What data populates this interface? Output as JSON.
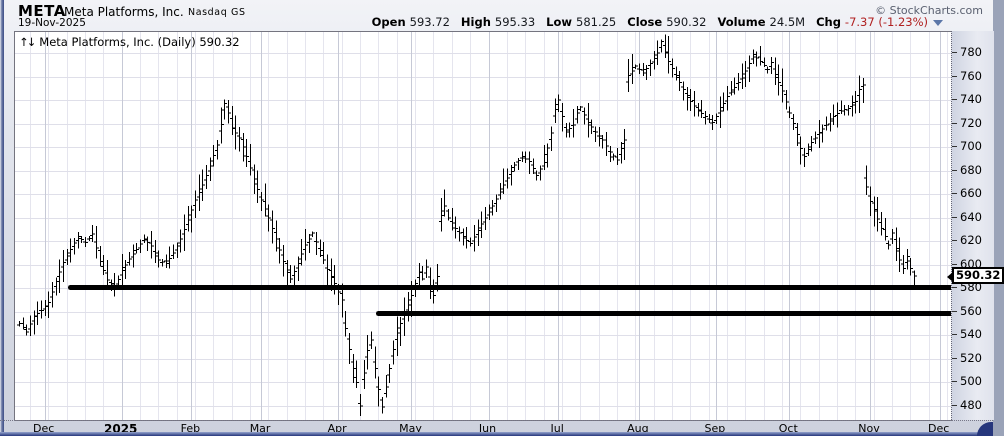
{
  "header": {
    "symbol": "META",
    "company": "Meta Platforms, Inc.",
    "exchange": "Nasdaq GS",
    "date": "19-Nov-2025",
    "copyright": "© StockCharts.com",
    "quote": {
      "items": [
        {
          "label": "Open",
          "value": "593.72",
          "down": false
        },
        {
          "label": "High",
          "value": "595.33",
          "down": false
        },
        {
          "label": "Low",
          "value": "581.25",
          "down": false
        },
        {
          "label": "Close",
          "value": "590.32",
          "down": false
        },
        {
          "label": "Volume",
          "value": "24.5M",
          "down": false
        },
        {
          "label": "Chg",
          "value": "-7.37 (-1.23%)",
          "down": true
        }
      ],
      "dropdown_icon": "chg-dropdown-arrow"
    }
  },
  "chart": {
    "arrows": "↑↓",
    "title": "Meta Platforms, Inc. (Daily) 590.32",
    "last_price_tag": "590.32",
    "colors": {
      "bar": "#000000",
      "grid_h": "#dfdfe9",
      "grid_week": "#e5e5ee",
      "grid_month": "#c6c9d6",
      "support": "#000000",
      "down_text": "#b02020",
      "plot_bg": "#ffffff"
    }
  },
  "chart_data": {
    "type": "bar",
    "subtype": "ohlc-daily",
    "title": "Meta Platforms, Inc. (Daily)",
    "ylim": [
      468,
      798
    ],
    "y_ticks": [
      480,
      500,
      520,
      540,
      560,
      580,
      600,
      620,
      640,
      660,
      680,
      700,
      720,
      740,
      760,
      780
    ],
    "grid": true,
    "days_total": 245,
    "x_months": [
      {
        "label": "Dec",
        "day": 7,
        "bold": false
      },
      {
        "label": "2025",
        "day": 28,
        "bold": true
      },
      {
        "label": "Feb",
        "day": 47,
        "bold": false
      },
      {
        "label": "Mar",
        "day": 66,
        "bold": false
      },
      {
        "label": "Apr",
        "day": 87,
        "bold": false
      },
      {
        "label": "May",
        "day": 107,
        "bold": false
      },
      {
        "label": "Jun",
        "day": 128,
        "bold": false
      },
      {
        "label": "Jul",
        "day": 147,
        "bold": false
      },
      {
        "label": "Aug",
        "day": 169,
        "bold": false
      },
      {
        "label": "Sep",
        "day": 190,
        "bold": false
      },
      {
        "label": "Oct",
        "day": 210,
        "bold": false
      },
      {
        "label": "Nov",
        "day": 232,
        "bold": false
      },
      {
        "label": "Dec",
        "day": 251,
        "bold": false
      }
    ],
    "last_ohlc": {
      "open": 593.72,
      "high": 595.33,
      "low": 581.25,
      "close": 590.32
    },
    "close_path_anchors": [
      [
        0,
        550
      ],
      [
        2,
        543
      ],
      [
        4,
        556
      ],
      [
        6,
        561
      ],
      [
        8,
        568
      ],
      [
        10,
        586
      ],
      [
        12,
        602
      ],
      [
        14,
        613
      ],
      [
        16,
        624
      ],
      [
        18,
        619
      ],
      [
        20,
        626
      ],
      [
        22,
        603
      ],
      [
        24,
        587
      ],
      [
        26,
        580
      ],
      [
        28,
        595
      ],
      [
        30,
        605
      ],
      [
        32,
        613
      ],
      [
        34,
        622
      ],
      [
        36,
        616
      ],
      [
        38,
        604
      ],
      [
        40,
        601
      ],
      [
        42,
        610
      ],
      [
        44,
        622
      ],
      [
        46,
        638
      ],
      [
        48,
        655
      ],
      [
        50,
        668
      ],
      [
        52,
        684
      ],
      [
        54,
        702
      ],
      [
        56,
        737
      ],
      [
        57,
        729
      ],
      [
        58,
        716
      ],
      [
        60,
        708
      ],
      [
        62,
        692
      ],
      [
        64,
        673
      ],
      [
        66,
        655
      ],
      [
        68,
        640
      ],
      [
        70,
        622
      ],
      [
        72,
        603
      ],
      [
        74,
        588
      ],
      [
        76,
        601
      ],
      [
        78,
        617
      ],
      [
        80,
        627
      ],
      [
        82,
        612
      ],
      [
        84,
        596
      ],
      [
        86,
        584
      ],
      [
        88,
        570
      ],
      [
        89,
        546
      ],
      [
        90,
        528
      ],
      [
        91,
        512
      ],
      [
        92,
        500
      ],
      [
        93,
        480
      ],
      [
        94,
        508
      ],
      [
        95,
        527
      ],
      [
        96,
        536
      ],
      [
        97,
        512
      ],
      [
        98,
        494
      ],
      [
        99,
        479
      ],
      [
        100,
        496
      ],
      [
        101,
        512
      ],
      [
        102,
        528
      ],
      [
        103,
        542
      ],
      [
        104,
        550
      ],
      [
        105,
        558
      ],
      [
        106,
        566
      ],
      [
        107,
        574
      ],
      [
        108,
        584
      ],
      [
        109,
        594
      ],
      [
        110,
        588
      ],
      [
        111,
        598
      ],
      [
        112,
        582
      ],
      [
        113,
        574
      ],
      [
        114,
        590
      ],
      [
        115,
        642
      ],
      [
        116,
        650
      ],
      [
        117,
        640
      ],
      [
        119,
        631
      ],
      [
        121,
        623
      ],
      [
        123,
        618
      ],
      [
        125,
        629
      ],
      [
        127,
        640
      ],
      [
        129,
        650
      ],
      [
        131,
        662
      ],
      [
        133,
        674
      ],
      [
        135,
        685
      ],
      [
        137,
        692
      ],
      [
        139,
        688
      ],
      [
        141,
        676
      ],
      [
        143,
        687
      ],
      [
        145,
        712
      ],
      [
        146,
        732
      ],
      [
        147,
        740
      ],
      [
        148,
        726
      ],
      [
        149,
        713
      ],
      [
        151,
        719
      ],
      [
        152,
        729
      ],
      [
        153,
        734
      ],
      [
        155,
        721
      ],
      [
        157,
        713
      ],
      [
        159,
        706
      ],
      [
        161,
        696
      ],
      [
        163,
        689
      ],
      [
        164,
        699
      ],
      [
        165,
        706
      ],
      [
        166,
        761
      ],
      [
        168,
        769
      ],
      [
        170,
        763
      ],
      [
        172,
        771
      ],
      [
        174,
        780
      ],
      [
        175,
        790
      ],
      [
        176,
        781
      ],
      [
        177,
        773
      ],
      [
        179,
        761
      ],
      [
        181,
        749
      ],
      [
        183,
        739
      ],
      [
        185,
        731
      ],
      [
        187,
        726
      ],
      [
        189,
        721
      ],
      [
        191,
        731
      ],
      [
        193,
        743
      ],
      [
        195,
        751
      ],
      [
        197,
        759
      ],
      [
        199,
        771
      ],
      [
        200,
        779
      ],
      [
        202,
        773
      ],
      [
        204,
        766
      ],
      [
        205,
        772
      ],
      [
        206,
        762
      ],
      [
        208,
        748
      ],
      [
        210,
        729
      ],
      [
        212,
        711
      ],
      [
        213,
        699
      ],
      [
        214,
        692
      ],
      [
        216,
        704
      ],
      [
        218,
        712
      ],
      [
        220,
        719
      ],
      [
        222,
        726
      ],
      [
        224,
        731
      ],
      [
        226,
        733
      ],
      [
        228,
        739
      ],
      [
        229,
        749
      ],
      [
        230,
        753
      ],
      [
        231,
        666
      ],
      [
        232,
        654
      ],
      [
        233,
        647
      ],
      [
        234,
        639
      ],
      [
        235,
        631
      ],
      [
        236,
        624
      ],
      [
        237,
        617
      ],
      [
        238,
        627
      ],
      [
        239,
        614
      ],
      [
        240,
        604
      ],
      [
        241,
        597
      ],
      [
        242,
        607
      ],
      [
        243,
        597
      ],
      [
        244,
        590.32
      ]
    ],
    "support_lines": [
      {
        "price": 581,
        "from_day": 14,
        "to_day": 256
      },
      {
        "price": 559,
        "from_day": 98,
        "to_day": 256
      }
    ]
  }
}
